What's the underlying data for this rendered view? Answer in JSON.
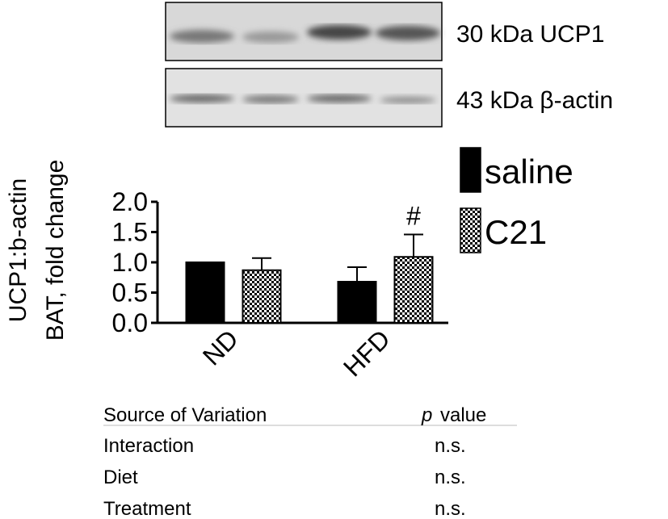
{
  "blot": {
    "labels": [
      "30 kDa UCP1",
      "43 kDa β-actin"
    ]
  },
  "chart_data": {
    "type": "bar",
    "ylabel": [
      "UCP1:b-actin",
      "BAT, fold change"
    ],
    "categories": [
      "ND",
      "HFD"
    ],
    "series": [
      {
        "name": "saline",
        "color": "#000000",
        "values": [
          1.0,
          0.68
        ],
        "errors": [
          0,
          0.24
        ]
      },
      {
        "name": "C21",
        "color": "#000000",
        "pattern": "checker",
        "values": [
          0.87,
          1.09
        ],
        "errors": [
          0.2,
          0.37
        ]
      }
    ],
    "annotations": [
      {
        "text": "#",
        "series": 1,
        "category": 1
      }
    ],
    "ylim": [
      0,
      2
    ],
    "yticks": [
      {
        "value": 0,
        "label": "0.0"
      },
      0.5,
      {
        "value": 1,
        "label": "1.0"
      },
      1.5,
      {
        "value": 2,
        "label": "2.0"
      }
    ],
    "grid": false
  },
  "table": {
    "header": {
      "source": "Source of Variation",
      "p": "p",
      "value": "value"
    },
    "rows": [
      [
        "Interaction",
        "n.s."
      ],
      [
        "Diet",
        "n.s."
      ],
      [
        "Treatment",
        "n.s."
      ]
    ]
  }
}
